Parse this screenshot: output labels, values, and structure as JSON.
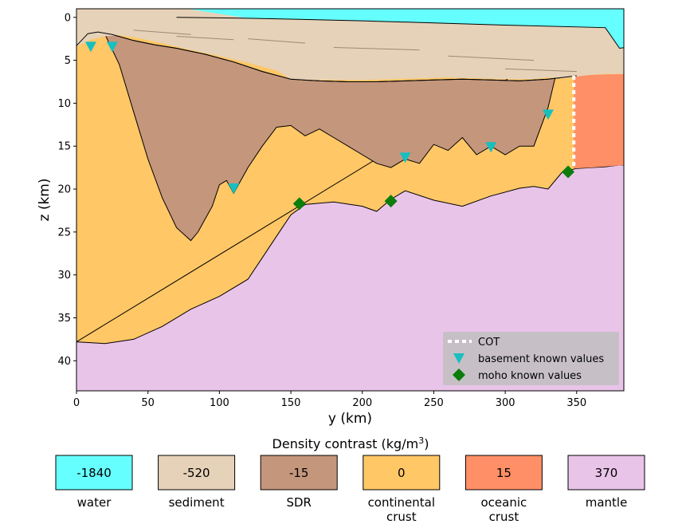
{
  "chart_data": {
    "type": "area",
    "xlabel": "y (km)",
    "ylabel": "z (km)",
    "xlim": [
      0,
      383
    ],
    "ylim": [
      43.5,
      -1
    ],
    "y_inverted": true,
    "xticks": [
      0,
      50,
      100,
      150,
      200,
      250,
      300,
      350
    ],
    "yticks": [
      0,
      5,
      10,
      15,
      20,
      25,
      30,
      35,
      40
    ],
    "layers": [
      {
        "name": "water",
        "color": "#66ffff"
      },
      {
        "name": "sediment",
        "color": "#e6d2b8"
      },
      {
        "name": "SDR",
        "color": "#c4967c"
      },
      {
        "name": "continental crust",
        "color": "#ffc766"
      },
      {
        "name": "oceanic crust",
        "color": "#ff8f66"
      },
      {
        "name": "mantle",
        "color": "#e9c4e9"
      }
    ],
    "surfaces": {
      "seafloor": {
        "x": [
          0,
          10,
          20,
          30,
          40,
          60,
          80,
          100,
          120,
          140,
          150,
          160,
          180,
          200,
          220,
          240,
          260,
          280,
          300,
          320,
          330,
          340,
          350,
          360,
          370,
          380
        ],
        "z": [
          3.4,
          2.6,
          2.2,
          2.1,
          2.3,
          3.0,
          3.8,
          4.5,
          5.3,
          6.2,
          7.2,
          7.3,
          7.3,
          7.3,
          7.2,
          7.1,
          7.0,
          7.1,
          7.2,
          7.2,
          7.0,
          7.1,
          6.9,
          6.7,
          6.6,
          6.6
        ]
      },
      "sediment_base": {
        "x": [
          0,
          8,
          15,
          25,
          40,
          55,
          70,
          90,
          110,
          130,
          150,
          170,
          190,
          210,
          230,
          250,
          270,
          290,
          310,
          330,
          340,
          350
        ],
        "z": [
          3.3,
          1.9,
          1.7,
          2.0,
          2.7,
          3.2,
          3.6,
          4.3,
          5.2,
          6.3,
          7.2,
          7.4,
          7.5,
          7.5,
          7.4,
          7.3,
          7.2,
          7.3,
          7.4,
          7.2,
          7.0,
          6.8
        ]
      },
      "basement": {
        "x": [
          0,
          8,
          20,
          30,
          40,
          50,
          60,
          70,
          80,
          85,
          90,
          95,
          100,
          105,
          110,
          120,
          130,
          140,
          150,
          160,
          170,
          180,
          190,
          200,
          210,
          220,
          230,
          240,
          250,
          260,
          270,
          280,
          290,
          300,
          310,
          320,
          330,
          335,
          340,
          350
        ],
        "z": [
          3.3,
          2.2,
          2.0,
          5.5,
          11.0,
          16.5,
          21.0,
          24.5,
          26.0,
          25.0,
          23.5,
          22.0,
          19.5,
          19.0,
          20.5,
          17.5,
          15.0,
          12.8,
          12.6,
          13.8,
          13.0,
          14.0,
          15.0,
          16.0,
          17.0,
          17.5,
          16.5,
          17.0,
          14.8,
          15.5,
          14.0,
          16.0,
          15.0,
          16.0,
          15.0,
          15.0,
          10.5,
          7.0,
          7.0,
          6.8
        ]
      },
      "moho": {
        "x": [
          0,
          20,
          40,
          60,
          80,
          100,
          120,
          130,
          140,
          150,
          160,
          180,
          200,
          210,
          220,
          230,
          250,
          270,
          290,
          310,
          320,
          330,
          340,
          350,
          360,
          370,
          380
        ],
        "z": [
          37.8,
          38.0,
          37.5,
          36.0,
          34.0,
          32.5,
          30.5,
          28.0,
          25.5,
          23.0,
          21.8,
          21.5,
          22.0,
          22.6,
          21.2,
          20.2,
          21.3,
          22.0,
          20.8,
          19.9,
          19.7,
          20.0,
          18.0,
          17.6,
          17.5,
          17.4,
          17.2
        ]
      },
      "cot": {
        "x": 348,
        "z_top": 6.8,
        "z_bottom": 17.6
      }
    },
    "basement_known_values": {
      "x": [
        10,
        25,
        110,
        230,
        290,
        330
      ],
      "z": [
        3.4,
        3.4,
        19.9,
        16.3,
        15.1,
        11.3
      ]
    },
    "moho_known_values": {
      "x": [
        156,
        220,
        344
      ],
      "z": [
        21.7,
        21.4,
        18.0
      ]
    },
    "legend": {
      "placement": "lower-right",
      "entries": [
        "COT",
        "basement known values",
        "moho known values"
      ]
    }
  },
  "density_panel": {
    "title": "Density contrast (kg/m",
    "title_sup": "3",
    "title_close": ")",
    "swatches": [
      {
        "value": "-1840",
        "label": [
          "water"
        ],
        "color": "#66ffff"
      },
      {
        "value": "-520",
        "label": [
          "sediment"
        ],
        "color": "#e6d2b8"
      },
      {
        "value": "-15",
        "label": [
          "SDR"
        ],
        "color": "#c4967c"
      },
      {
        "value": "0",
        "label": [
          "continental",
          "crust"
        ],
        "color": "#ffc766"
      },
      {
        "value": "15",
        "label": [
          "oceanic",
          "crust"
        ],
        "color": "#ff8f66"
      },
      {
        "value": "370",
        "label": [
          "mantle"
        ],
        "color": "#e9c4e9"
      }
    ]
  }
}
